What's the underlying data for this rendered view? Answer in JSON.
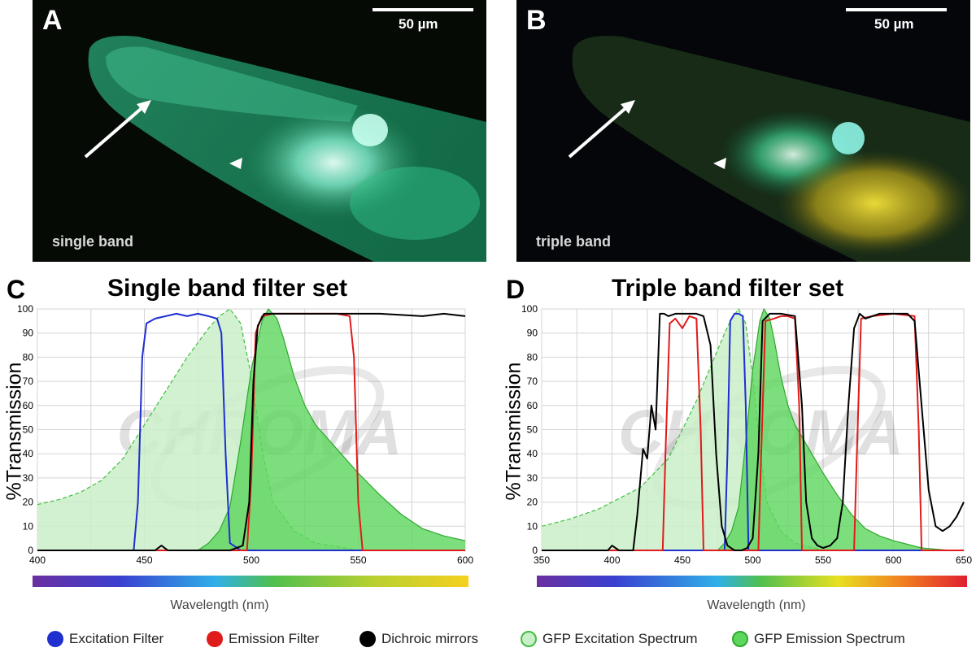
{
  "panels": {
    "a": {
      "letter": "A",
      "scale": "50 µm",
      "caption": "single band"
    },
    "b": {
      "letter": "B",
      "scale": "50 µm",
      "caption": "triple band"
    }
  },
  "charts": {
    "c": {
      "letter": "C",
      "title": "Single band filter set",
      "ylabel": "%Transmission",
      "xlabel": "Wavelength (nm)"
    },
    "d": {
      "letter": "D",
      "title": "Triple band filter set",
      "ylabel": "%Transmission",
      "xlabel": "Wavelength (nm)"
    }
  },
  "watermark": "CHROMA",
  "legend": {
    "excitation": "Excitation Filter",
    "emission": "Emission Filter",
    "dichroic": "Dichroic mirrors",
    "gfp_ex": "GFP Excitation Spectrum",
    "gfp_em": "GFP Emission Spectrum"
  },
  "colors": {
    "excitation": "#1f2fd0",
    "emission": "#e01b1b",
    "dichroic": "#000000",
    "gfp_ex_fill": "#c9efc9",
    "gfp_ex_line": "#3fbf3f",
    "gfp_em_fill": "#5cd65c",
    "gfp_em_line": "#2fa82f"
  },
  "chart_data": [
    {
      "type": "line",
      "title": "Single band filter set",
      "xlabel": "Wavelength (nm)",
      "ylabel": "%Transmission",
      "xlim": [
        400,
        600
      ],
      "ylim": [
        0,
        100
      ],
      "xticks": [
        400,
        450,
        500,
        550,
        600
      ],
      "yticks": [
        0,
        10,
        20,
        30,
        40,
        50,
        60,
        70,
        80,
        90,
        100
      ],
      "grid": true,
      "series": [
        {
          "name": "GFP Excitation Spectrum",
          "kind": "ex",
          "x": [
            400,
            410,
            420,
            430,
            440,
            450,
            460,
            470,
            480,
            485,
            490,
            495,
            500,
            505,
            510,
            520,
            530,
            550
          ],
          "y": [
            19,
            21,
            24,
            29,
            38,
            52,
            66,
            80,
            92,
            97,
            100,
            94,
            72,
            42,
            20,
            8,
            3,
            0
          ]
        },
        {
          "name": "GFP Emission Spectrum",
          "kind": "em",
          "x": [
            475,
            480,
            485,
            490,
            495,
            500,
            505,
            508,
            512,
            515,
            520,
            525,
            530,
            540,
            550,
            560,
            570,
            580,
            590,
            600
          ],
          "y": [
            0,
            3,
            8,
            18,
            45,
            75,
            95,
            100,
            96,
            88,
            72,
            60,
            52,
            42,
            32,
            23,
            15,
            9,
            6,
            4
          ]
        },
        {
          "name": "Excitation Filter",
          "kind": "excitation",
          "x": [
            400,
            445,
            447,
            449,
            451,
            455,
            460,
            465,
            470,
            475,
            480,
            484,
            486,
            488,
            490,
            495,
            600
          ],
          "y": [
            0,
            0,
            20,
            80,
            94,
            96,
            97,
            98,
            97,
            98,
            97,
            96,
            90,
            40,
            3,
            0,
            0
          ]
        },
        {
          "name": "Emission Filter",
          "kind": "emission",
          "x": [
            400,
            498,
            500,
            502,
            505,
            510,
            520,
            530,
            540,
            546,
            548,
            550,
            552,
            600
          ],
          "y": [
            0,
            0,
            30,
            90,
            97,
            98,
            98,
            98,
            98,
            97,
            80,
            20,
            0,
            0
          ]
        },
        {
          "name": "Dichroic mirrors",
          "kind": "dichroic",
          "x": [
            400,
            455,
            458,
            461,
            490,
            496,
            499,
            501,
            503,
            506,
            510,
            520,
            540,
            560,
            580,
            590,
            600
          ],
          "y": [
            0,
            0,
            2,
            0,
            0,
            2,
            20,
            70,
            93,
            98,
            98,
            98,
            98,
            98,
            97,
            98,
            97
          ]
        }
      ]
    },
    {
      "type": "line",
      "title": "Triple band filter set",
      "xlabel": "Wavelength (nm)",
      "ylabel": "%Transmission",
      "xlim": [
        350,
        650
      ],
      "ylim": [
        0,
        100
      ],
      "xticks": [
        350,
        400,
        450,
        500,
        550,
        600,
        650
      ],
      "yticks": [
        0,
        10,
        20,
        30,
        40,
        50,
        60,
        70,
        80,
        90,
        100
      ],
      "grid": true,
      "series": [
        {
          "name": "GFP Excitation Spectrum",
          "kind": "ex",
          "x": [
            350,
            370,
            390,
            400,
            420,
            440,
            460,
            470,
            480,
            485,
            490,
            495,
            500,
            505,
            510,
            520,
            530,
            550
          ],
          "y": [
            10,
            13,
            17,
            20,
            26,
            38,
            62,
            76,
            90,
            96,
            100,
            94,
            72,
            42,
            20,
            8,
            3,
            0
          ]
        },
        {
          "name": "GFP Emission Spectrum",
          "kind": "em",
          "x": [
            475,
            480,
            485,
            490,
            495,
            500,
            505,
            508,
            512,
            515,
            520,
            525,
            530,
            540,
            550,
            560,
            570,
            580,
            590,
            600,
            620,
            640
          ],
          "y": [
            0,
            3,
            8,
            18,
            45,
            75,
            95,
            100,
            96,
            88,
            72,
            60,
            52,
            42,
            32,
            23,
            15,
            9,
            6,
            4,
            1,
            0
          ]
        },
        {
          "name": "Excitation Filter",
          "kind": "excitation",
          "x": [
            350,
            480,
            482,
            484,
            487,
            490,
            493,
            495,
            497,
            650
          ],
          "y": [
            0,
            0,
            40,
            95,
            98,
            98,
            97,
            60,
            0,
            0
          ]
        },
        {
          "name": "Emission Filter",
          "kind": "emission",
          "x": [
            350,
            436,
            438,
            441,
            445,
            450,
            455,
            460,
            463,
            465,
            504,
            506,
            509,
            515,
            520,
            525,
            530,
            533,
            535,
            572,
            574,
            577,
            585,
            600,
            615,
            618,
            620,
            650
          ],
          "y": [
            0,
            0,
            40,
            94,
            96,
            92,
            97,
            96,
            50,
            0,
            0,
            40,
            95,
            96,
            97,
            97,
            96,
            60,
            0,
            0,
            40,
            96,
            97,
            98,
            97,
            50,
            0,
            0
          ]
        },
        {
          "name": "Dichroic mirrors",
          "kind": "dichroic",
          "x": [
            350,
            397,
            400,
            405,
            415,
            418,
            422,
            425,
            428,
            431,
            434,
            437,
            440,
            445,
            450,
            455,
            460,
            465,
            470,
            474,
            478,
            482,
            487,
            492,
            496,
            500,
            504,
            507,
            512,
            520,
            530,
            535,
            538,
            542,
            546,
            550,
            555,
            560,
            564,
            568,
            572,
            576,
            580,
            585,
            590,
            600,
            610,
            615,
            620,
            625,
            630,
            635,
            640,
            645,
            650
          ],
          "y": [
            0,
            0,
            2,
            0,
            0,
            15,
            42,
            38,
            60,
            50,
            98,
            98,
            97,
            98,
            98,
            98,
            98,
            97,
            85,
            40,
            10,
            2,
            0,
            0,
            1,
            5,
            40,
            95,
            98,
            98,
            97,
            60,
            20,
            5,
            2,
            1,
            2,
            5,
            20,
            60,
            92,
            98,
            96,
            97,
            98,
            98,
            98,
            95,
            60,
            25,
            10,
            8,
            10,
            14,
            20
          ]
        }
      ]
    }
  ]
}
